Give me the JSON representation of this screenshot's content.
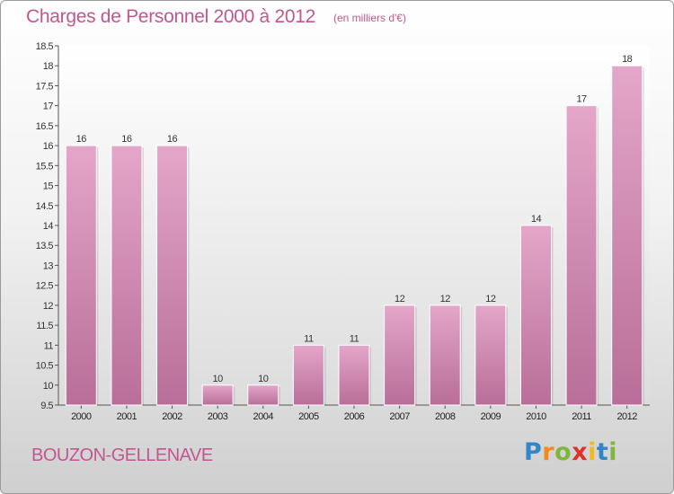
{
  "title": "Charges de Personnel 2000 à 2012",
  "subtitle": "(en milliers d'€)",
  "commune": "BOUZON-GELLENAVE",
  "logo": {
    "letters": [
      "P",
      "r",
      "o",
      "x",
      "i",
      "t",
      "i"
    ],
    "colors": [
      "#2f86c8",
      "#f18c1c",
      "#7fb73d",
      "#e0322b",
      "#f3b81b",
      "#2f86c8",
      "#7fb73d"
    ]
  },
  "colors": {
    "bar": "#d97eb0",
    "text_accent": "#c0578f"
  },
  "chart_data": {
    "type": "bar",
    "categories": [
      "2000",
      "2001",
      "2002",
      "2003",
      "2004",
      "2005",
      "2006",
      "2007",
      "2008",
      "2009",
      "2010",
      "2011",
      "2012"
    ],
    "values": [
      16,
      16,
      16,
      10,
      10,
      11,
      11,
      12,
      12,
      12,
      14,
      17,
      18
    ],
    "data_labels": [
      "16",
      "16",
      "16",
      "10",
      "10",
      "11",
      "11",
      "12",
      "12",
      "12",
      "14",
      "17",
      "18"
    ],
    "ylim": [
      9.5,
      18.5
    ],
    "yticks": [
      "9.5",
      "10",
      "10.5",
      "11",
      "11.5",
      "12",
      "12.5",
      "13",
      "13.5",
      "14",
      "14.5",
      "15",
      "15.5",
      "16",
      "16.5",
      "17",
      "17.5",
      "18",
      "18.5"
    ],
    "grid": false,
    "legend": "none"
  }
}
